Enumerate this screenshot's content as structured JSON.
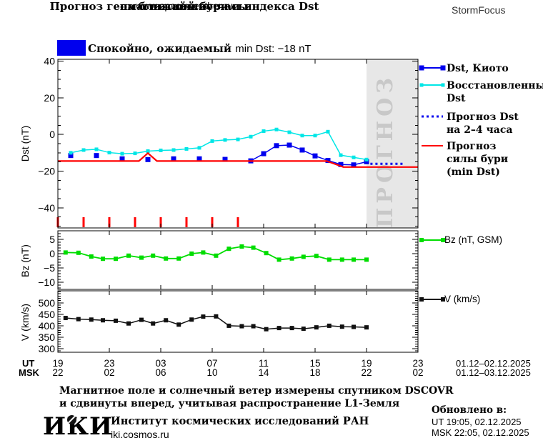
{
  "header": {
    "title1": "Прогноз геомагнитной бури и индекса Dst",
    "title2": "на ближайшие часы",
    "site": "www.spaceweather.ru",
    "brand": "StormFocus"
  },
  "status": {
    "color": "#0000ee",
    "text_ru": "Спокойно, ожидаемый",
    "text_en": "min Dst: −18 nT"
  },
  "legend_main": [
    {
      "lines": [
        "Dst, Киото"
      ]
    },
    {
      "lines": [
        "Восстановленный",
        "Dst"
      ]
    },
    {
      "lines": [
        "Прогноз Dst",
        "на 2–4 часа"
      ]
    },
    {
      "lines": [
        "Прогноз",
        "силы бури",
        "(min Dst)"
      ]
    }
  ],
  "xaxis": {
    "ut_label": "UT",
    "msk_label": "MSK",
    "ut_values": [
      "19",
      "23",
      "03",
      "07",
      "11",
      "15",
      "19",
      "23"
    ],
    "msk_values": [
      "22",
      "02",
      "06",
      "10",
      "14",
      "18",
      "22",
      "02"
    ],
    "ut_date": "01.12–02.12.2025",
    "msk_date": "01.12–03.12.2025"
  },
  "footer": {
    "line1": "Магнитное поле и солнечный ветер измерены спутником DSCOVR",
    "line2": "и сдвинуты вперед, учитывая распространение L1-Земля",
    "updated_label": "Обновлено в:",
    "updated_ut": "UT  19:05, 02.12.2025",
    "updated_msk": "MSK 22:05, 02.12.2025",
    "logo": "ИКИ",
    "institute": "Институт космических исследований РАН",
    "site": "iki.cosmos.ru"
  },
  "chart_data": [
    {
      "name": "dst",
      "type": "line",
      "title": "Прогноз геомагнитной бури и индекса Dst",
      "ylabel": "Dst (nT)",
      "xlabel": "",
      "ylim": [
        -51,
        41
      ],
      "xlim": [
        0,
        28
      ],
      "x_unit": "hours from 19:00 UT 01.12.2025",
      "grid": false,
      "legend_position": "right",
      "xticks": [
        0,
        4,
        8,
        12,
        16,
        20,
        24,
        28
      ],
      "yticks": [
        {
          "v": 40,
          "label": "40"
        },
        {
          "v": 20,
          "label": "20"
        },
        {
          "v": 0,
          "label": "0"
        },
        {
          "v": -20,
          "label": "−20"
        },
        {
          "v": -40,
          "label": "−40"
        }
      ],
      "ytick_minor_step": 5,
      "forecast_region": {
        "x0": 24,
        "x1": 28,
        "label": "ПРОГНОЗ",
        "fill": "#e7e7e7",
        "label_color": "#c8c8c8"
      },
      "event_ticks": {
        "color": "#ff0000",
        "x": [
          0,
          2,
          4,
          6,
          8,
          10,
          12,
          14
        ]
      },
      "series": [
        {
          "name": "Dst, Киото",
          "color": "#0000ee",
          "marker": 7,
          "width": 1.5,
          "line_from_x": 15,
          "x": [
            1,
            3,
            5,
            7,
            9,
            11,
            13,
            15,
            16,
            17,
            18,
            19,
            20,
            21,
            22,
            23,
            24
          ],
          "y": [
            -11.5,
            -11.5,
            -13.3,
            -13.7,
            -13.3,
            -13.3,
            -13.6,
            -14.4,
            -10.5,
            -6.1,
            -5.8,
            -8.5,
            -11.7,
            -14.2,
            -16.4,
            -16.6,
            -14.9
          ]
        },
        {
          "name": "Восстановленный Dst",
          "color": "#00e6e6",
          "marker": 5,
          "width": 1.5,
          "x": [
            1,
            2,
            3,
            4,
            5,
            6,
            7,
            8,
            9,
            10,
            11,
            12,
            13,
            14,
            15,
            16,
            17,
            18,
            19,
            20,
            21,
            22,
            23,
            24
          ],
          "y": [
            -10,
            -8.5,
            -8.1,
            -9.9,
            -10.5,
            -10.3,
            -9.1,
            -8.7,
            -8.5,
            -7.9,
            -7.3,
            -3.6,
            -3.0,
            -2.7,
            -1.2,
            1.8,
            2.7,
            1.2,
            -0.6,
            -0.6,
            1.5,
            -11.3,
            -12.5,
            -13.7
          ]
        },
        {
          "name": "Прогноз Dst на 2–4 часа",
          "color": "#0000ee",
          "dash": "3 4",
          "width": 3,
          "x": [
            24.3,
            26.9
          ],
          "y": [
            -16,
            -16
          ]
        },
        {
          "name": "Прогноз силы бури (min Dst)",
          "color": "#ff0000",
          "width": 2.2,
          "x": [
            0,
            6.3,
            7,
            7.7,
            20.9,
            22.2,
            28
          ],
          "y": [
            -14.5,
            -14.5,
            -10.2,
            -14.5,
            -14.5,
            -17.8,
            -17.8
          ]
        }
      ]
    },
    {
      "name": "bz",
      "type": "line",
      "ylabel": "Bz (nT)",
      "legend": "Bz (nT, GSM)",
      "ylim": [
        -12.5,
        8
      ],
      "xlim": [
        0,
        28
      ],
      "grid": false,
      "xticks": [
        0,
        4,
        8,
        12,
        16,
        20,
        24,
        28
      ],
      "yticks": [
        {
          "v": 5,
          "label": "5"
        },
        {
          "v": 0,
          "label": "0"
        },
        {
          "v": -5,
          "label": "−5"
        },
        {
          "v": -10,
          "label": "−10"
        }
      ],
      "ytick_minor_step": 1,
      "series": [
        {
          "name": "Bz (nT, GSM)",
          "color": "#00dd00",
          "marker": 6,
          "width": 1.8,
          "x": [
            0.6,
            1.6,
            2.6,
            3.5,
            4.5,
            5.5,
            6.5,
            7.4,
            8.4,
            9.4,
            10.4,
            11.3,
            12.3,
            13.3,
            14.3,
            15.2,
            16.2,
            17.2,
            18.2,
            19.1,
            20.1,
            21.1,
            22.1,
            23.0,
            24.0
          ],
          "y": [
            0.4,
            0.3,
            -1.0,
            -1.8,
            -1.8,
            -0.7,
            -1.4,
            -0.7,
            -1.7,
            -1.7,
            0.0,
            0.4,
            -0.7,
            1.7,
            2.5,
            2.1,
            0.2,
            -2.1,
            -1.7,
            -1.1,
            -0.8,
            -2.1,
            -2.1,
            -2.1,
            -2.1
          ]
        }
      ]
    },
    {
      "name": "v",
      "type": "line",
      "ylabel": "V (km/s)",
      "legend": "V (km/s)",
      "ylim": [
        284,
        553
      ],
      "xlim": [
        0,
        28
      ],
      "grid": false,
      "xticks": [
        0,
        4,
        8,
        12,
        16,
        20,
        24,
        28
      ],
      "yticks": [
        {
          "v": 500,
          "label": "500"
        },
        {
          "v": 450,
          "label": "450"
        },
        {
          "v": 400,
          "label": "400"
        },
        {
          "v": 350,
          "label": "350"
        },
        {
          "v": 300,
          "label": "300"
        }
      ],
      "ytick_minor_step": 10,
      "series": [
        {
          "name": "V (km/s)",
          "color": "#111111",
          "marker": 6,
          "width": 1.5,
          "x": [
            0.6,
            1.6,
            2.6,
            3.5,
            4.5,
            5.5,
            6.5,
            7.4,
            8.4,
            9.4,
            10.4,
            11.3,
            12.3,
            13.3,
            14.3,
            15.2,
            16.2,
            17.2,
            18.2,
            19.1,
            20.1,
            21.1,
            22.1,
            23.0,
            24.0
          ],
          "y": [
            434,
            429,
            427,
            424,
            422,
            410,
            426,
            410,
            424,
            405,
            427,
            440,
            441,
            400,
            398,
            398,
            385,
            390,
            390,
            387,
            393,
            400,
            396,
            395,
            393
          ]
        }
      ]
    }
  ]
}
